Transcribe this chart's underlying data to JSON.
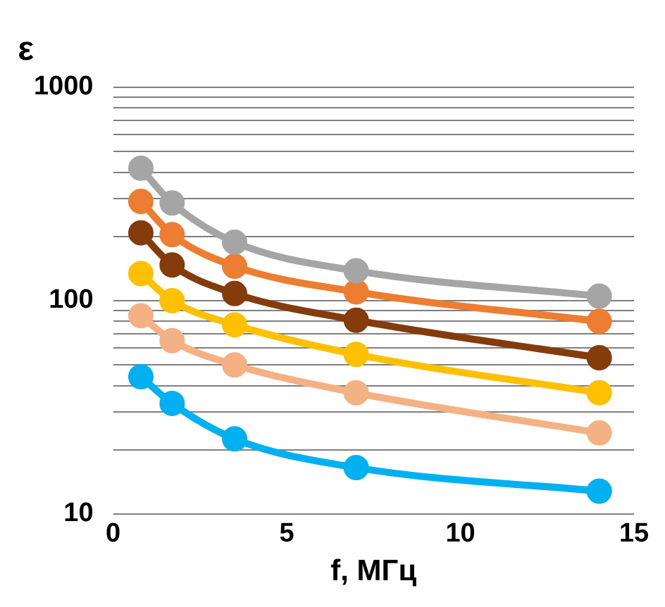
{
  "chart_data": {
    "type": "line",
    "xlabel": "f, МГц",
    "ylabel": "ε",
    "x": [
      0.8,
      1.7,
      3.5,
      7,
      14
    ],
    "series": [
      {
        "color": "#a5a5a5",
        "values": [
          417,
          287,
          188,
          138,
          105
        ]
      },
      {
        "color": "#ed7d31",
        "values": [
          292,
          204,
          145,
          110,
          80
        ]
      },
      {
        "color": "#843c0c",
        "values": [
          208,
          147,
          108,
          81,
          54
        ]
      },
      {
        "color": "#ffc000",
        "values": [
          134,
          100,
          77,
          56,
          37
        ]
      },
      {
        "color": "#f4b183",
        "values": [
          85,
          65,
          50,
          37,
          24
        ]
      },
      {
        "color": "#00b0f0",
        "values": [
          44,
          33,
          22.5,
          16.5,
          12.8
        ]
      }
    ],
    "xlim": [
      0,
      15
    ],
    "xticks": [
      0,
      5,
      10,
      15
    ],
    "ylim": [
      10,
      1000
    ],
    "log": "y",
    "yticks": [
      10,
      {
        "value": 20,
        "label": null
      },
      {
        "value": 30,
        "label": null
      },
      {
        "value": 40,
        "label": null
      },
      {
        "value": 50,
        "label": null
      },
      {
        "value": 60,
        "label": null
      },
      {
        "value": 70,
        "label": null
      },
      {
        "value": 80,
        "label": null
      },
      {
        "value": 90,
        "label": null
      },
      100,
      {
        "value": 200,
        "label": null
      },
      {
        "value": 300,
        "label": null
      },
      {
        "value": 400,
        "label": null
      },
      {
        "value": 500,
        "label": null
      },
      {
        "value": 600,
        "label": null
      },
      {
        "value": 700,
        "label": null
      },
      {
        "value": 800,
        "label": null
      },
      {
        "value": 900,
        "label": null
      },
      1000
    ],
    "grid": "y",
    "marker": "circle",
    "line_style": "solid",
    "legend": false
  }
}
